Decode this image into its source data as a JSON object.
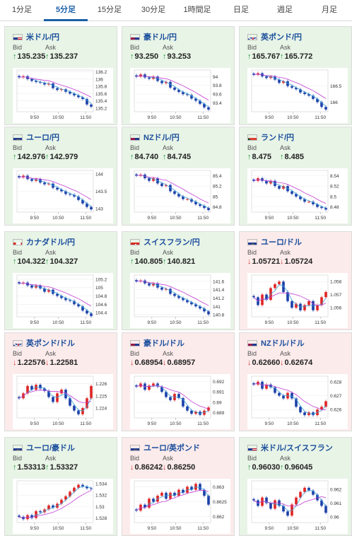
{
  "tabs": [
    {
      "label": "1分足",
      "active": false
    },
    {
      "label": "5分足",
      "active": true
    },
    {
      "label": "15分足",
      "active": false
    },
    {
      "label": "30分足",
      "active": false
    },
    {
      "label": "1時間足",
      "active": false
    },
    {
      "label": "日足",
      "active": false
    },
    {
      "label": "週足",
      "active": false
    },
    {
      "label": "月足",
      "active": false
    }
  ],
  "labels": {
    "bid": "Bid",
    "ask": "Ask"
  },
  "colors": {
    "up_bg": "#e8f4e6",
    "down_bg": "#fcebeb",
    "up": "#1e9b3c",
    "down": "#d43b3b",
    "candle_up": "#e02424",
    "candle_down": "#1c3fa8",
    "ma_short": "#3ba0d8",
    "ma_long": "#c23bd4",
    "link": "#1a4e9c"
  },
  "cards": [
    {
      "pair": "米ドル/円",
      "flag": "us",
      "direction": "up",
      "bid": "135.235",
      "ask": "135.237",
      "chart_data": {
        "type": "candlestick",
        "x_ticks": [
          "9:50",
          "10:50",
          "11:50"
        ],
        "y_ticks": [
          "136.2",
          "136",
          "135.8",
          "135.6",
          "135.4",
          "135.2"
        ],
        "ylim": [
          135.1,
          136.25
        ],
        "trend": [
          136.05,
          136.08,
          136.0,
          135.95,
          135.92,
          135.9,
          135.85,
          135.88,
          135.75,
          135.7,
          135.72,
          135.65,
          135.6,
          135.55,
          135.5,
          135.45,
          135.3,
          135.24
        ]
      }
    },
    {
      "pair": "豪ドル/円",
      "flag": "au",
      "direction": "up",
      "bid": "93.250",
      "ask": "93.253",
      "chart_data": {
        "type": "candlestick",
        "x_ticks": [
          "9:50",
          "10:50",
          "11:50"
        ],
        "y_ticks": [
          "94",
          "93.8",
          "93.6",
          "93.4"
        ],
        "ylim": [
          93.2,
          94.15
        ],
        "trend": [
          94.0,
          94.05,
          93.98,
          93.95,
          94.0,
          93.9,
          93.85,
          93.88,
          93.75,
          93.7,
          93.65,
          93.6,
          93.58,
          93.5,
          93.45,
          93.38,
          93.3,
          93.25
        ]
      }
    },
    {
      "pair": "英ポンド/円",
      "flag": "gb",
      "direction": "up",
      "bid": "165.767",
      "ask": "165.772",
      "chart_data": {
        "type": "candlestick",
        "x_ticks": [
          "9:50",
          "10:50",
          "11:50"
        ],
        "y_ticks": [
          "166.5",
          "166"
        ],
        "ylim": [
          165.7,
          167.0
        ],
        "trend": [
          166.85,
          166.9,
          166.8,
          166.75,
          166.8,
          166.7,
          166.6,
          166.65,
          166.5,
          166.45,
          166.4,
          166.3,
          166.25,
          166.2,
          166.1,
          166.0,
          165.85,
          165.77
        ]
      }
    },
    {
      "pair": "ユーロ/円",
      "flag": "eu",
      "direction": "up",
      "bid": "142.976",
      "ask": "142.979",
      "chart_data": {
        "type": "candlestick",
        "x_ticks": [
          "9:50",
          "10:50",
          "11:50"
        ],
        "y_ticks": [
          "144",
          "143.5",
          "143"
        ],
        "ylim": [
          142.9,
          144.1
        ],
        "trend": [
          143.9,
          143.95,
          143.85,
          143.8,
          143.85,
          143.75,
          143.7,
          143.72,
          143.6,
          143.55,
          143.5,
          143.42,
          143.4,
          143.35,
          143.25,
          143.15,
          143.05,
          142.98
        ]
      }
    },
    {
      "pair": "NZドル/円",
      "flag": "nz",
      "direction": "up",
      "bid": "84.740",
      "ask": "84.745",
      "chart_data": {
        "type": "candlestick",
        "x_ticks": [
          "9:50",
          "10:50",
          "11:50"
        ],
        "y_ticks": [
          "85.4",
          "85.2",
          "85",
          "84.8"
        ],
        "ylim": [
          84.7,
          85.5
        ],
        "trend": [
          85.4,
          85.42,
          85.35,
          85.3,
          85.35,
          85.25,
          85.2,
          85.22,
          85.1,
          85.05,
          85.0,
          84.95,
          84.95,
          84.9,
          84.85,
          84.82,
          84.78,
          84.74
        ]
      }
    },
    {
      "pair": "ランド/円",
      "flag": "za",
      "direction": "up",
      "bid": "8.475",
      "ask": "8.485",
      "chart_data": {
        "type": "candlestick",
        "x_ticks": [
          "9:50",
          "10:50",
          "11:50"
        ],
        "y_ticks": [
          "8.54",
          "8.52",
          "8.5",
          "8.48"
        ],
        "ylim": [
          8.47,
          8.55
        ],
        "trend": [
          8.53,
          8.535,
          8.53,
          8.525,
          8.53,
          8.52,
          8.515,
          8.52,
          8.51,
          8.505,
          8.5,
          8.495,
          8.49,
          8.49,
          8.485,
          8.48,
          8.478,
          8.475
        ]
      }
    },
    {
      "pair": "カナダドル/円",
      "flag": "ca",
      "direction": "up",
      "bid": "104.322",
      "ask": "104.327",
      "chart_data": {
        "type": "candlestick",
        "x_ticks": [
          "9:50",
          "10:50",
          "11:50"
        ],
        "y_ticks": [
          "105.2",
          "105",
          "104.8",
          "104.6",
          "104.4"
        ],
        "ylim": [
          104.3,
          105.3
        ],
        "trend": [
          105.1,
          105.12,
          105.05,
          105.0,
          105.05,
          104.98,
          104.9,
          104.95,
          104.85,
          104.8,
          104.75,
          104.7,
          104.68,
          104.6,
          104.55,
          104.45,
          104.38,
          104.32
        ]
      }
    },
    {
      "pair": "スイスフラン/円",
      "flag": "ch",
      "direction": "up",
      "bid": "140.805",
      "ask": "140.821",
      "chart_data": {
        "type": "candlestick",
        "x_ticks": [
          "9:50",
          "10:50",
          "11:50"
        ],
        "y_ticks": [
          "141.6",
          "141.4",
          "141.2",
          "141",
          "140.8"
        ],
        "ylim": [
          140.75,
          141.75
        ],
        "trend": [
          141.6,
          141.62,
          141.55,
          141.5,
          141.55,
          141.45,
          141.4,
          141.42,
          141.3,
          141.25,
          141.2,
          141.15,
          141.1,
          141.05,
          141.0,
          140.95,
          140.88,
          140.81
        ]
      }
    },
    {
      "pair": "ユーロ/ドル",
      "flag": "eu",
      "direction": "down",
      "bid": "1.05721",
      "ask": "1.05724",
      "chart_data": {
        "type": "candlestick",
        "x_ticks": [
          "9:50",
          "10:50",
          "11:50"
        ],
        "y_ticks": [
          "1.058",
          "1.057",
          "1.056"
        ],
        "ylim": [
          1.0553,
          1.0585
        ],
        "trend": [
          1.0568,
          1.0562,
          1.057,
          1.0566,
          1.0575,
          1.0578,
          1.058,
          1.0572,
          1.0565,
          1.056,
          1.0563,
          1.0558,
          1.0562,
          1.0565,
          1.0558,
          1.0562,
          1.0568,
          1.0572
        ]
      }
    },
    {
      "pair": "英ポンド/ドル",
      "flag": "gb",
      "direction": "down",
      "bid": "1.22576",
      "ask": "1.22581",
      "chart_data": {
        "type": "candlestick",
        "x_ticks": [
          "9:50",
          "10:50",
          "11:50"
        ],
        "y_ticks": [
          "1.226",
          "1.225",
          "1.224"
        ],
        "ylim": [
          1.2232,
          1.2266
        ],
        "trend": [
          1.2248,
          1.2252,
          1.2258,
          1.2255,
          1.2259,
          1.2256,
          1.2254,
          1.2249,
          1.2245,
          1.2252,
          1.2255,
          1.2248,
          1.2242,
          1.2238,
          1.2235,
          1.224,
          1.2248,
          1.2258
        ]
      }
    },
    {
      "pair": "豪ドル/ドル",
      "flag": "au",
      "direction": "down",
      "bid": "0.68954",
      "ask": "0.68957",
      "chart_data": {
        "type": "candlestick",
        "x_ticks": [
          "9:50",
          "10:50",
          "11:50"
        ],
        "y_ticks": [
          "0.692",
          "0.691",
          "0.69",
          "0.689"
        ],
        "ylim": [
          0.6885,
          0.6925
        ],
        "trend": [
          0.6915,
          0.6918,
          0.6912,
          0.6916,
          0.6918,
          0.6915,
          0.691,
          0.6905,
          0.6902,
          0.6908,
          0.6904,
          0.6896,
          0.6892,
          0.6889,
          0.6891,
          0.6888,
          0.6892,
          0.6895
        ]
      }
    },
    {
      "pair": "NZドル/ドル",
      "flag": "nz",
      "direction": "down",
      "bid": "0.62660",
      "ask": "0.62674",
      "chart_data": {
        "type": "candlestick",
        "x_ticks": [
          "9:50",
          "10:50",
          "11:50"
        ],
        "y_ticks": [
          "0.628",
          "0.627",
          "0.626"
        ],
        "ylim": [
          0.6254,
          0.6284
        ],
        "trend": [
          0.6278,
          0.628,
          0.6275,
          0.6278,
          0.6276,
          0.6272,
          0.627,
          0.6268,
          0.6272,
          0.6268,
          0.6262,
          0.6258,
          0.6256,
          0.6258,
          0.6256,
          0.626,
          0.6262,
          0.6266
        ]
      }
    },
    {
      "pair": "ユーロ/豪ドル",
      "flag": "eu",
      "direction": "up",
      "bid": "1.53313",
      "ask": "1.53327",
      "chart_data": {
        "type": "candlestick",
        "x_ticks": [
          "9:50",
          "10:50",
          "11:50"
        ],
        "y_ticks": [
          "1.534",
          "1.532",
          "1.53",
          "1.528"
        ],
        "ylim": [
          1.5272,
          1.5345
        ],
        "trend": [
          1.5282,
          1.5278,
          1.5285,
          1.528,
          1.5292,
          1.529,
          1.5295,
          1.5302,
          1.5298,
          1.5305,
          1.5312,
          1.5318,
          1.5326,
          1.5333,
          1.5338,
          1.5335,
          1.5332,
          1.5331
        ]
      }
    },
    {
      "pair": "ユーロ/英ポンド",
      "flag": "eu",
      "direction": "down",
      "bid": "0.86242",
      "ask": "0.86250",
      "chart_data": {
        "type": "candlestick",
        "x_ticks": [
          "9:50",
          "10:50",
          "11:50"
        ],
        "y_ticks": [
          "0.863",
          "0.8625",
          "0.862"
        ],
        "ylim": [
          0.8618,
          0.8632
        ],
        "trend": [
          0.8622,
          0.8624,
          0.8623,
          0.8626,
          0.8625,
          0.8627,
          0.8628,
          0.8626,
          0.8628,
          0.8627,
          0.8629,
          0.8628,
          0.863,
          0.8629,
          0.8631,
          0.8629,
          0.8627,
          0.8624
        ]
      }
    },
    {
      "pair": "米ドル/スイスフラン",
      "flag": "us",
      "direction": "up",
      "bid": "0.96030",
      "ask": "0.96045",
      "chart_data": {
        "type": "candlestick",
        "x_ticks": [
          "9:50",
          "10:50",
          "11:50"
        ],
        "y_ticks": [
          "0.962",
          "0.961",
          "0.96"
        ],
        "ylim": [
          0.9596,
          0.9626
        ],
        "trend": [
          0.9612,
          0.9608,
          0.9614,
          0.961,
          0.9606,
          0.9612,
          0.9608,
          0.9604,
          0.9601,
          0.9609,
          0.9614,
          0.9618,
          0.9621,
          0.9619,
          0.9616,
          0.9612,
          0.9608,
          0.9603
        ]
      }
    }
  ]
}
